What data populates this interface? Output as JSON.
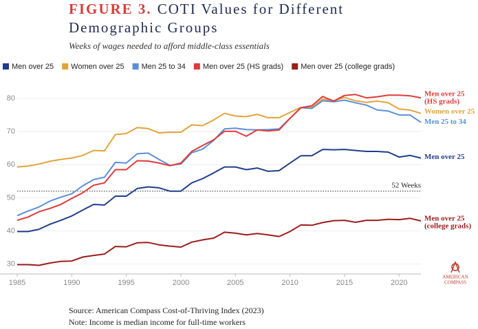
{
  "chart_data": {
    "type": "line",
    "title_prefix": "FIGURE 3.",
    "title": [
      "COTI Values for Different",
      "Demographic Groups"
    ],
    "subtitle": "Weeks of wages needed to afford middle-class essentials",
    "x": [
      1985,
      1986,
      1987,
      1988,
      1989,
      1990,
      1991,
      1992,
      1993,
      1994,
      1995,
      1996,
      1997,
      1998,
      1999,
      2000,
      2001,
      2002,
      2003,
      2004,
      2005,
      2006,
      2007,
      2008,
      2009,
      2010,
      2011,
      2012,
      2013,
      2014,
      2015,
      2016,
      2017,
      2018,
      2019,
      2020,
      2021,
      2022
    ],
    "xlim": [
      1985,
      2022
    ],
    "xticks": [
      1985,
      1990,
      1995,
      2000,
      2005,
      2010,
      2015,
      2020
    ],
    "ylim": [
      27,
      85
    ],
    "yticks": [
      30,
      40,
      50,
      60,
      70,
      80
    ],
    "grid": true,
    "series": [
      {
        "name": "Men over 25",
        "color": "#1f3d8c",
        "end_label": [
          "Men over 25"
        ],
        "values": [
          39.8,
          39.8,
          40.5,
          42,
          43.2,
          44.5,
          46.3,
          48,
          47.8,
          50.5,
          50.5,
          52.8,
          53.3,
          53,
          52,
          52,
          54.5,
          55.8,
          57.5,
          59.3,
          59.3,
          58.5,
          59,
          58,
          58.2,
          60.5,
          62.7,
          62.7,
          64.6,
          64.5,
          64.6,
          64.3,
          64,
          64,
          63.8,
          62.3,
          62.8,
          62
        ]
      },
      {
        "name": "Women over 25",
        "color": "#e0a43a",
        "end_label": [
          "Women over 25"
        ],
        "values": [
          59.3,
          59.6,
          60.2,
          61,
          61.6,
          62,
          62.8,
          64.3,
          64.2,
          69.1,
          69.4,
          71.2,
          70.9,
          69.6,
          69.8,
          69.8,
          72,
          71.8,
          73.5,
          75.5,
          74.7,
          74.5,
          75.2,
          74.2,
          74.2,
          75.8,
          77.3,
          77.3,
          79.8,
          79.3,
          80.3,
          79.3,
          78.8,
          79.2,
          78.7,
          76.8,
          76.5,
          75.5
        ]
      },
      {
        "name": "Men 25 to 34",
        "color": "#5b8fd6",
        "end_label": [
          "Men 25 to 34"
        ],
        "values": [
          44.6,
          46,
          47.2,
          49,
          50.2,
          51.2,
          53.6,
          55.5,
          56.2,
          60.7,
          60.5,
          63.3,
          63.5,
          61.6,
          59.8,
          60.2,
          63.6,
          64.7,
          67.3,
          70.8,
          71,
          70.6,
          70.5,
          70.6,
          70.8,
          74,
          77.2,
          77,
          79.3,
          79,
          79.5,
          78.7,
          78,
          76.5,
          76.2,
          75,
          75,
          72.8
        ]
      },
      {
        "name": "Men over 25 (HS grads)",
        "color": "#e03a3a",
        "end_label": [
          "Men over 25",
          "(HS grads)"
        ],
        "values": [
          43.2,
          44.2,
          45.8,
          46.8,
          48,
          49.8,
          51.5,
          53.8,
          54.5,
          58.5,
          58.5,
          61.2,
          61.1,
          60.5,
          59.7,
          60.5,
          64,
          65.8,
          67.5,
          70.1,
          70.1,
          68.6,
          70.5,
          70.2,
          70.5,
          74,
          77.2,
          77.8,
          80.6,
          79.2,
          80.9,
          81.2,
          80.2,
          80.5,
          81,
          81,
          80.8,
          80.2
        ]
      },
      {
        "name": "Men over 25 (college grads)",
        "color": "#9b1c1c",
        "end_label": [
          "Men over 25",
          "(college grads)"
        ],
        "values": [
          29.8,
          29.8,
          29.6,
          30.3,
          30.8,
          30.9,
          32.1,
          32.6,
          33,
          35.3,
          35.2,
          36.4,
          36.5,
          35.8,
          35.4,
          35.1,
          36.6,
          37.3,
          37.8,
          39.6,
          39.3,
          38.8,
          39.2,
          38.8,
          38.3,
          39.8,
          41.8,
          41.7,
          42.5,
          43.1,
          43.2,
          42.6,
          43.2,
          43.2,
          43.5,
          43.4,
          43.8,
          43
        ]
      }
    ],
    "reference_line": {
      "value": 52,
      "label": "52 Weeks"
    },
    "source": "Source: American Compass Cost-of-Thriving Index (2023)",
    "note": "Note: Income is median income for full-time workers",
    "logo": [
      "AMERICAN",
      "COMPASS"
    ]
  }
}
